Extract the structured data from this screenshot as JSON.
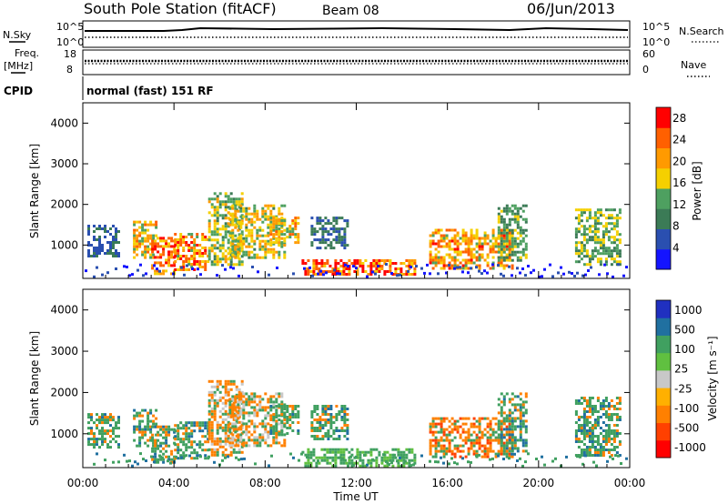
{
  "header": {
    "title": "South Pole Station (fitACF)",
    "beam": "Beam 08",
    "date": "06/Jun/2013"
  },
  "noise_panel": {
    "left_label": "N.Sky",
    "left_ticks": [
      "10^5",
      "10^0"
    ],
    "right_label": "N.Search",
    "right_ticks": [
      "10^5",
      "10^0"
    ]
  },
  "freq_panel": {
    "left_label_1": "Freq.",
    "left_label_2": "[MHz]",
    "left_ticks": [
      "18",
      "8"
    ],
    "right_label": "Nave",
    "right_ticks": [
      "60",
      "0"
    ]
  },
  "cpid": {
    "label": "CPID",
    "value": "normal (fast) 151 RF"
  },
  "colors": {
    "power_scale": [
      "#1414ff",
      "#2a4fb0",
      "#3b7b56",
      "#4ea060",
      "#f5d000",
      "#ff9a00",
      "#ff6000",
      "#ff0000"
    ],
    "velocity_scale": [
      "#ff0000",
      "#ff4000",
      "#ff8000",
      "#ffb000",
      "#c8c8c8",
      "#60c040",
      "#40a060",
      "#2070a0",
      "#2030c0"
    ]
  },
  "chart_data": [
    {
      "type": "heatmap",
      "title": "",
      "xlabel": "",
      "ylabel": "Slant Range [km]",
      "ylim": [
        180,
        4500
      ],
      "xlim": [
        "00:00",
        "24:00"
      ],
      "y_ticks": [
        "1000",
        "2000",
        "3000",
        "4000"
      ],
      "colorbar_label": "Power [dB]",
      "colorbar_ticks": [
        "4",
        "8",
        "12",
        "16",
        "20",
        "24",
        "28"
      ],
      "colorbar_range": [
        0,
        30
      ]
    },
    {
      "type": "heatmap",
      "title": "",
      "xlabel": "Time UT",
      "ylabel": "Slant Range [km]",
      "ylim": [
        180,
        4500
      ],
      "xlim": [
        "00:00",
        "24:00"
      ],
      "x_ticks": [
        "00:00",
        "04:00",
        "08:00",
        "12:00",
        "16:00",
        "20:00",
        "00:00"
      ],
      "y_ticks": [
        "1000",
        "2000",
        "3000",
        "4000"
      ],
      "colorbar_label": "Velocity [m s⁻¹]",
      "colorbar_ticks": [
        "1000",
        "500",
        "100",
        "25",
        "-25",
        "-100",
        "-500",
        "-1000"
      ]
    }
  ]
}
